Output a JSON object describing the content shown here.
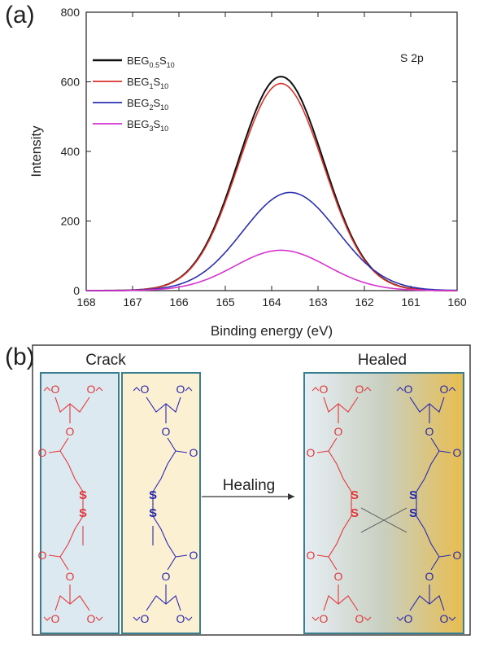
{
  "panels": {
    "a": "(a)",
    "b": "(b)"
  },
  "chart_data": {
    "type": "line",
    "xlabel": "Binding energy (eV)",
    "ylabel": "Intensity",
    "annotation": "S 2p",
    "xlim": [
      168,
      160
    ],
    "ylim": [
      0,
      800
    ],
    "xticks": [
      168,
      167,
      166,
      165,
      164,
      163,
      162,
      161,
      160
    ],
    "yticks": [
      0,
      200,
      400,
      600,
      800
    ],
    "x_reversed": true,
    "legend_position": "top-left",
    "series": [
      {
        "name": "BEG0.5S10",
        "base": "BEG",
        "sub1": "0.5",
        "mid": "S",
        "sub2": "10",
        "color": "#111111",
        "peak_x": 163.8,
        "peak_y": 615,
        "sigma": 0.92
      },
      {
        "name": "BEG1S10",
        "base": "BEG",
        "sub1": "1",
        "mid": "S",
        "sub2": "10",
        "color": "#d9332b",
        "peak_x": 163.8,
        "peak_y": 595,
        "sigma": 0.92
      },
      {
        "name": "BEG2S10",
        "base": "BEG",
        "sub1": "2",
        "mid": "S",
        "sub2": "10",
        "color": "#2b2fb0",
        "peak_x": 163.6,
        "peak_y": 282,
        "sigma": 1.02
      },
      {
        "name": "BEG3S10",
        "base": "BEG",
        "sub1": "3",
        "mid": "S",
        "sub2": "10",
        "color": "#d633d0",
        "peak_x": 163.8,
        "peak_y": 116,
        "sigma": 1.0
      }
    ]
  },
  "scheme": {
    "crack_title": "Crack",
    "healed_title": "Healed",
    "arrow_label": "Healing",
    "oxygen": "O",
    "sulfur": "S",
    "red": "#e23a3a",
    "blue": "#2a2ab0",
    "left_bg": "#dde9f1",
    "right_bg": "#fcf0d2",
    "healed_left": "#e6eef5",
    "healed_right": "#e8bd4f",
    "box_border": "#3a7f8f"
  }
}
